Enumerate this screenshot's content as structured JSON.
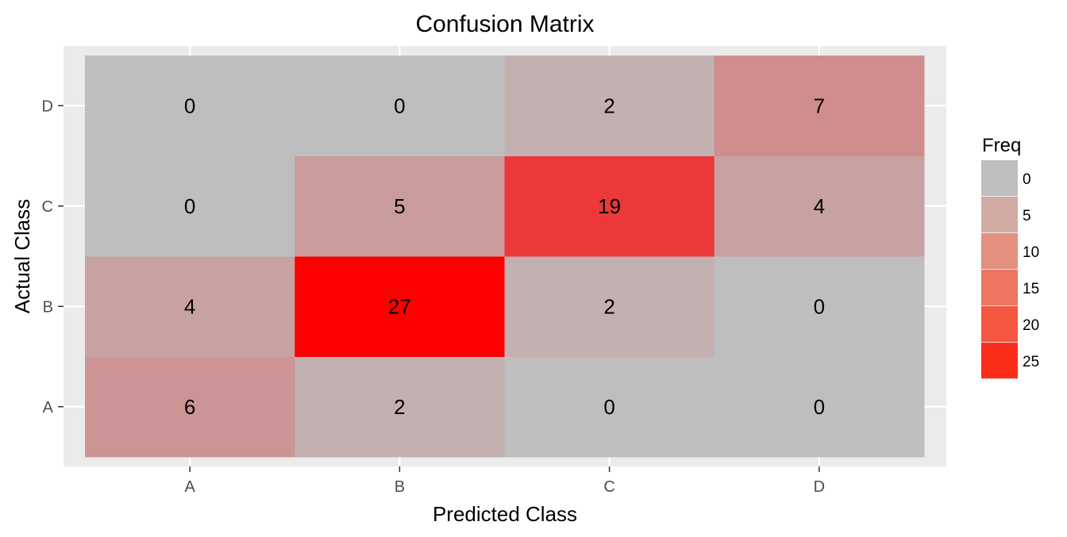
{
  "chart_data": {
    "type": "heatmap",
    "title": "Confusion Matrix",
    "xlabel": "Predicted Class",
    "ylabel": "Actual Class",
    "x_categories": [
      "A",
      "B",
      "C",
      "D"
    ],
    "y_categories": [
      "A",
      "B",
      "C",
      "D"
    ],
    "values": [
      {
        "actual": "A",
        "predicted": "A",
        "freq": 6
      },
      {
        "actual": "A",
        "predicted": "B",
        "freq": 2
      },
      {
        "actual": "A",
        "predicted": "C",
        "freq": 0
      },
      {
        "actual": "A",
        "predicted": "D",
        "freq": 0
      },
      {
        "actual": "B",
        "predicted": "A",
        "freq": 4
      },
      {
        "actual": "B",
        "predicted": "B",
        "freq": 27
      },
      {
        "actual": "B",
        "predicted": "C",
        "freq": 2
      },
      {
        "actual": "B",
        "predicted": "D",
        "freq": 0
      },
      {
        "actual": "C",
        "predicted": "A",
        "freq": 0
      },
      {
        "actual": "C",
        "predicted": "B",
        "freq": 5
      },
      {
        "actual": "C",
        "predicted": "C",
        "freq": 19
      },
      {
        "actual": "C",
        "predicted": "D",
        "freq": 4
      },
      {
        "actual": "D",
        "predicted": "A",
        "freq": 0
      },
      {
        "actual": "D",
        "predicted": "B",
        "freq": 0
      },
      {
        "actual": "D",
        "predicted": "C",
        "freq": 2
      },
      {
        "actual": "D",
        "predicted": "D",
        "freq": 7
      }
    ],
    "color_scale": {
      "low": "#bebebe",
      "high": "#ff0000",
      "min": 0,
      "max": 27
    },
    "legend": {
      "title": "Freq",
      "breaks": [
        0,
        5,
        10,
        15,
        20,
        25
      ],
      "colors": [
        "#bebebe",
        "#d2aba2",
        "#e4907f",
        "#ed7561",
        "#f55640",
        "#fb2e1c"
      ],
      "placement": "right"
    },
    "panel_background": "#ebebeb",
    "grid": true
  }
}
